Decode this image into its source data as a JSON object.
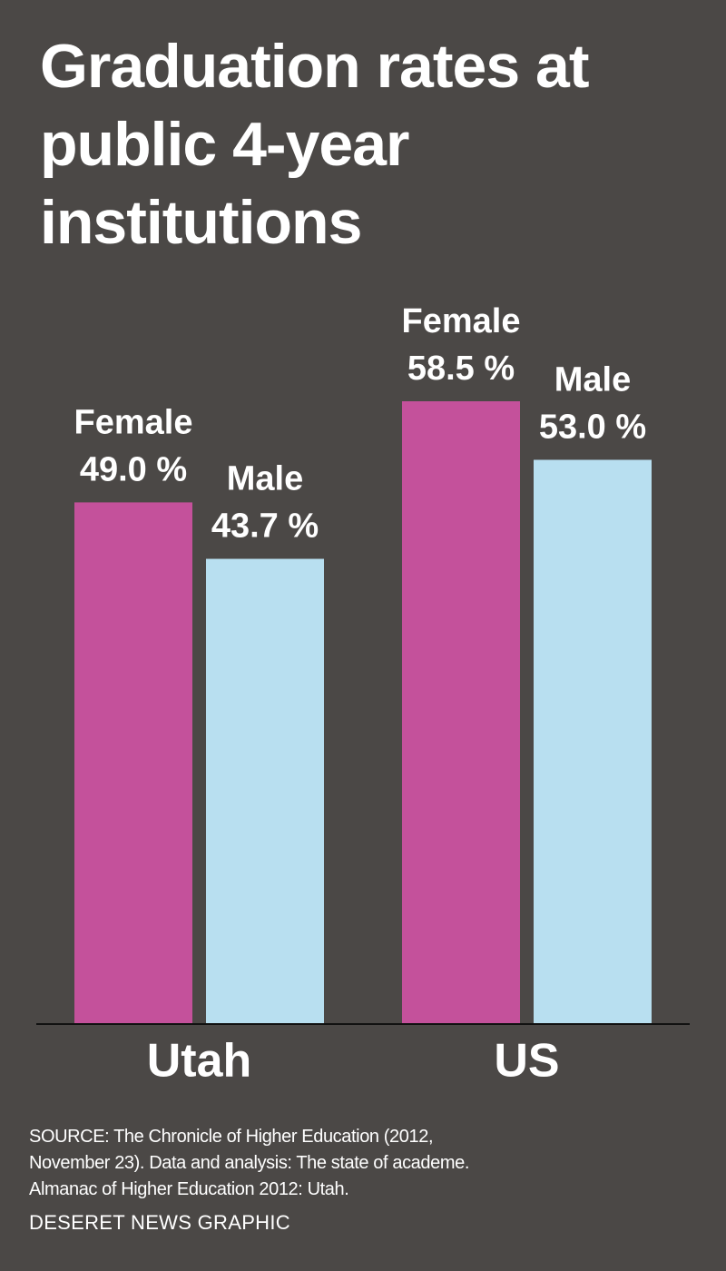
{
  "chart_data": {
    "type": "bar",
    "title": "Graduation rates at public 4-year institutions",
    "categories": [
      "Utah",
      "US"
    ],
    "series": [
      {
        "name": "Female",
        "color": "#c4519b",
        "values": [
          49.0,
          58.5
        ],
        "value_labels": [
          "49.0 %",
          "58.5 %"
        ]
      },
      {
        "name": "Male",
        "color": "#b8dff0",
        "values": [
          43.7,
          53.0
        ],
        "value_labels": [
          "43.7 %",
          "53.0 %"
        ]
      }
    ],
    "source": "SOURCE: The Chronicle of Higher Education (2012, November 23). Data and analysis: The state of academe. Almanac of Higher Education 2012: Utah.",
    "credit": "DESERET NEWS GRAPHIC"
  }
}
